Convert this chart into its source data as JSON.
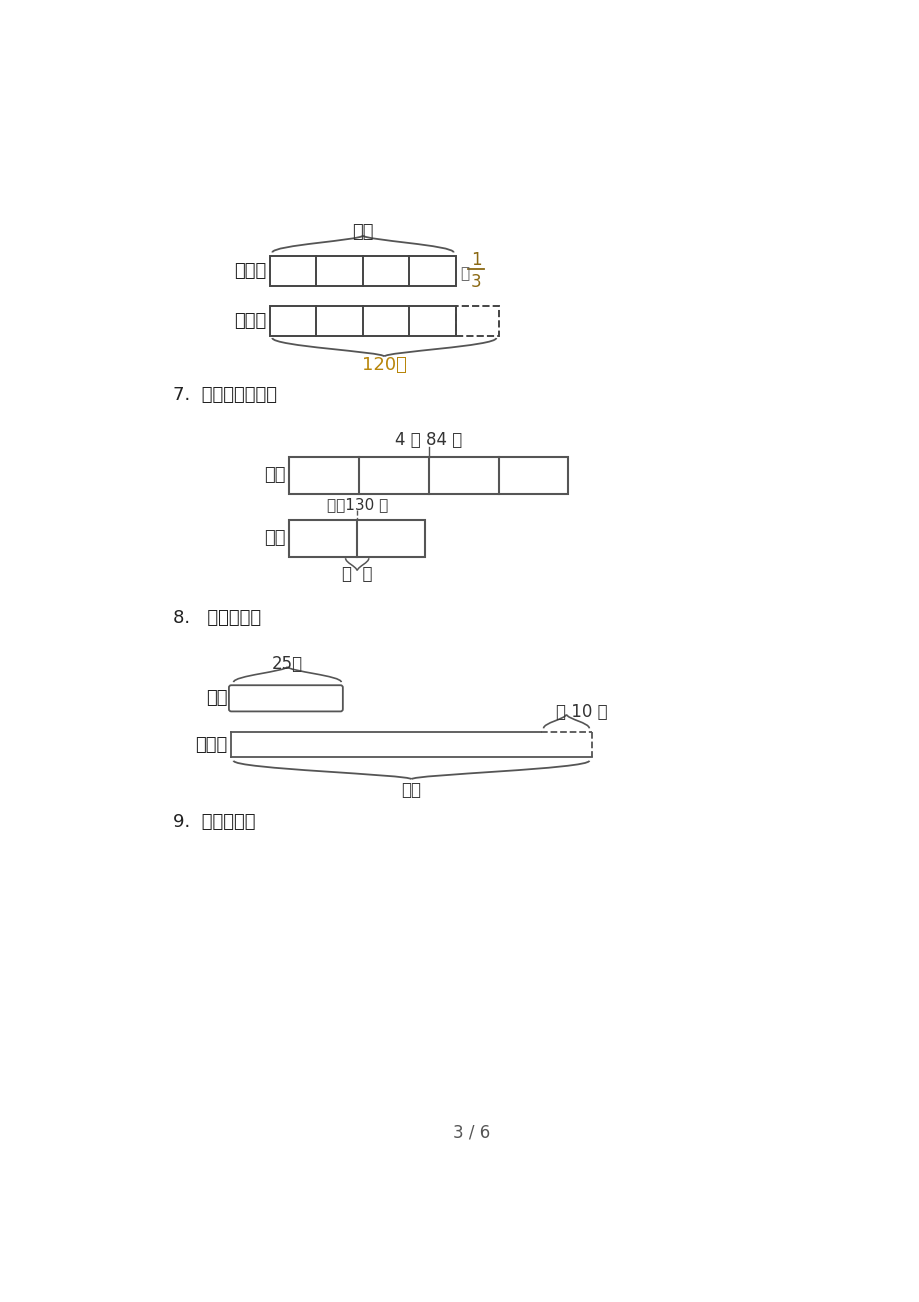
{
  "bg_color": "#ffffff",
  "page_num": "3 / 6",
  "section7_label": "7.  看图列式计算。",
  "section8_label": "8.   列式计算。",
  "section9_label": "9.  列式计算。",
  "baitu_label": "白兔：",
  "huitu_label": "灰兔：",
  "top_brace_label": "？只",
  "bottom_brace_label": "120只",
  "duo_label": "多",
  "fraction_num": "1",
  "fraction_den": "3",
  "beizi_label": "杯子",
  "shuibei_label": "水杯",
  "top_bar_label": "4 个 84 元",
  "mid_bar_label": "每个130 元",
  "bot_bar_label": "？  元",
  "xiaoji_label": "小鸡",
  "xiaoyu_label": "小鸭：",
  "xiaoji_brace": "25只",
  "shao_label": "少 10 只",
  "question_label": "？只"
}
